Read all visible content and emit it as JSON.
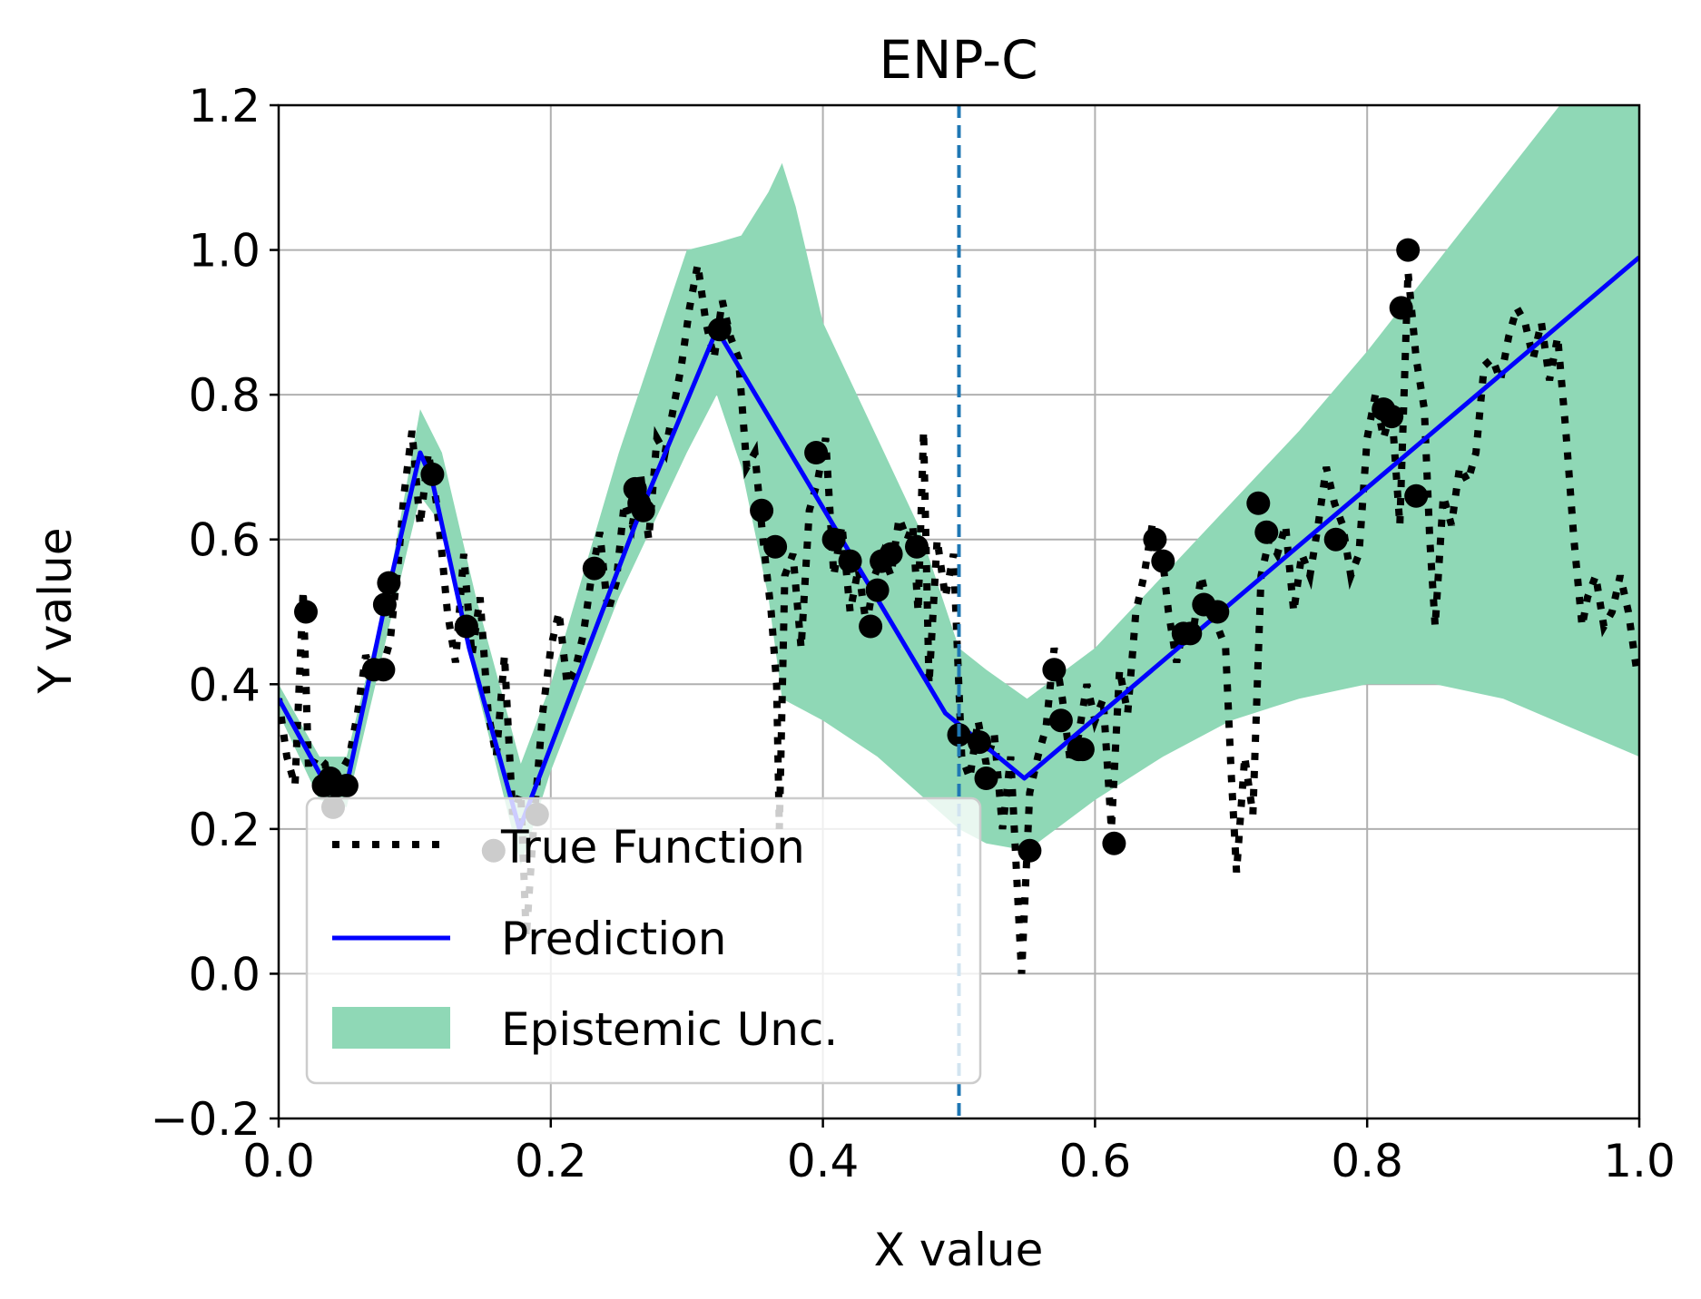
{
  "chart_data": {
    "type": "line",
    "title": "ENP-C",
    "xlabel": "X value",
    "ylabel": "Y value",
    "xlim": [
      0.0,
      1.0
    ],
    "ylim": [
      -0.2,
      1.2
    ],
    "xticks": [
      "0.0",
      "0.2",
      "0.4",
      "0.6",
      "0.8",
      "1.0"
    ],
    "yticks": [
      "−0.2",
      "0.0",
      "0.2",
      "0.4",
      "0.6",
      "0.8",
      "1.0",
      "1.2"
    ],
    "grid": true,
    "legend_position": "lower-left",
    "split_line_x": 0.5,
    "colors": {
      "true_function": "#000000",
      "prediction": "#0000ff",
      "uncertainty": "#8fd8b6",
      "context_points": "#000000",
      "split_line": "#1f77b4",
      "grid": "#b0b0b0"
    },
    "legend": {
      "true_function": "True Function",
      "prediction": "Prediction",
      "uncertainty": "Epistemic Unc."
    },
    "true_function": {
      "x": [
        0.0,
        0.006,
        0.012,
        0.018,
        0.022,
        0.028,
        0.034,
        0.04,
        0.046,
        0.052,
        0.058,
        0.064,
        0.07,
        0.076,
        0.082,
        0.088,
        0.092,
        0.098,
        0.104,
        0.11,
        0.116,
        0.12,
        0.124,
        0.13,
        0.136,
        0.142,
        0.148,
        0.154,
        0.16,
        0.166,
        0.172,
        0.178,
        0.182,
        0.188,
        0.194,
        0.2,
        0.206,
        0.212,
        0.218,
        0.224,
        0.23,
        0.236,
        0.242,
        0.248,
        0.254,
        0.26,
        0.266,
        0.272,
        0.278,
        0.284,
        0.29,
        0.296,
        0.302,
        0.308,
        0.314,
        0.32,
        0.326,
        0.332,
        0.338,
        0.344,
        0.35,
        0.356,
        0.362,
        0.366,
        0.368,
        0.372,
        0.378,
        0.384,
        0.39,
        0.396,
        0.402,
        0.408,
        0.414,
        0.42,
        0.426,
        0.432,
        0.438,
        0.444,
        0.45,
        0.456,
        0.462,
        0.466,
        0.47,
        0.474,
        0.478,
        0.484,
        0.49,
        0.496,
        0.502,
        0.508,
        0.514,
        0.52,
        0.526,
        0.532,
        0.538,
        0.542,
        0.546,
        0.552,
        0.558,
        0.564,
        0.57,
        0.576,
        0.582,
        0.588,
        0.594,
        0.6,
        0.606,
        0.612,
        0.618,
        0.624,
        0.63,
        0.636,
        0.642,
        0.648,
        0.654,
        0.66,
        0.666,
        0.672,
        0.678,
        0.684,
        0.69,
        0.696,
        0.7,
        0.704,
        0.71,
        0.716,
        0.722,
        0.728,
        0.734,
        0.74,
        0.746,
        0.752,
        0.758,
        0.764,
        0.77,
        0.776,
        0.782,
        0.788,
        0.794,
        0.8,
        0.806,
        0.812,
        0.818,
        0.824,
        0.83,
        0.836,
        0.842,
        0.846,
        0.85,
        0.856,
        0.862,
        0.868,
        0.874,
        0.88,
        0.886,
        0.892,
        0.898,
        0.904,
        0.91,
        0.916,
        0.922,
        0.928,
        0.934,
        0.94,
        0.946,
        0.952,
        0.958,
        0.962,
        0.968,
        0.974,
        0.98,
        0.986,
        0.992,
        0.998,
        1.0
      ],
      "y": [
        0.38,
        0.3,
        0.26,
        0.53,
        0.28,
        0.3,
        0.29,
        0.23,
        0.28,
        0.3,
        0.36,
        0.44,
        0.41,
        0.42,
        0.46,
        0.57,
        0.66,
        0.75,
        0.62,
        0.72,
        0.65,
        0.58,
        0.5,
        0.43,
        0.58,
        0.44,
        0.52,
        0.36,
        0.3,
        0.44,
        0.22,
        0.25,
        0.05,
        0.22,
        0.36,
        0.45,
        0.5,
        0.4,
        0.42,
        0.47,
        0.55,
        0.61,
        0.5,
        0.54,
        0.65,
        0.62,
        0.69,
        0.6,
        0.74,
        0.72,
        0.78,
        0.84,
        0.92,
        0.98,
        0.9,
        0.85,
        0.93,
        0.88,
        0.85,
        0.7,
        0.72,
        0.6,
        0.5,
        0.4,
        0.2,
        0.55,
        0.58,
        0.45,
        0.64,
        0.68,
        0.74,
        0.55,
        0.62,
        0.5,
        0.56,
        0.48,
        0.55,
        0.58,
        0.55,
        0.63,
        0.6,
        0.62,
        0.5,
        0.75,
        0.4,
        0.6,
        0.52,
        0.58,
        0.3,
        0.27,
        0.35,
        0.29,
        0.33,
        0.2,
        0.3,
        0.15,
        0.0,
        0.25,
        0.3,
        0.34,
        0.45,
        0.38,
        0.29,
        0.33,
        0.4,
        0.35,
        0.38,
        0.2,
        0.42,
        0.36,
        0.5,
        0.55,
        0.62,
        0.6,
        0.5,
        0.43,
        0.49,
        0.47,
        0.55,
        0.5,
        0.48,
        0.45,
        0.28,
        0.14,
        0.3,
        0.22,
        0.55,
        0.6,
        0.58,
        0.62,
        0.5,
        0.58,
        0.55,
        0.62,
        0.7,
        0.65,
        0.62,
        0.55,
        0.58,
        0.74,
        0.8,
        0.74,
        0.78,
        0.62,
        0.97,
        0.85,
        0.78,
        0.6,
        0.48,
        0.66,
        0.62,
        0.7,
        0.68,
        0.72,
        0.84,
        0.85,
        0.82,
        0.88,
        0.92,
        0.9,
        0.85,
        0.9,
        0.82,
        0.88,
        0.75,
        0.6,
        0.48,
        0.52,
        0.55,
        0.48,
        0.5,
        0.55,
        0.5,
        0.42,
        0.42
      ]
    },
    "prediction": {
      "x": [
        0.0,
        0.035,
        0.05,
        0.077,
        0.104,
        0.113,
        0.14,
        0.177,
        0.262,
        0.322,
        0.49,
        0.548,
        1.0
      ],
      "y": [
        0.38,
        0.26,
        0.26,
        0.5,
        0.72,
        0.68,
        0.45,
        0.2,
        0.62,
        0.89,
        0.36,
        0.27,
        0.99
      ]
    },
    "uncertainty_band": {
      "x": [
        0.0,
        0.03,
        0.05,
        0.08,
        0.104,
        0.12,
        0.145,
        0.178,
        0.2,
        0.25,
        0.3,
        0.322,
        0.34,
        0.36,
        0.37,
        0.38,
        0.4,
        0.44,
        0.47,
        0.5,
        0.52,
        0.55,
        0.6,
        0.65,
        0.7,
        0.75,
        0.8,
        0.85,
        0.9,
        0.95,
        1.0
      ],
      "upper": [
        0.4,
        0.3,
        0.3,
        0.53,
        0.78,
        0.72,
        0.52,
        0.29,
        0.4,
        0.72,
        1.0,
        1.01,
        1.02,
        1.08,
        1.12,
        1.06,
        0.9,
        0.74,
        0.62,
        0.45,
        0.42,
        0.38,
        0.45,
        0.55,
        0.65,
        0.75,
        0.86,
        0.98,
        1.1,
        1.22,
        1.2
      ],
      "lower": [
        0.36,
        0.24,
        0.23,
        0.47,
        0.66,
        0.62,
        0.4,
        0.15,
        0.28,
        0.52,
        0.72,
        0.8,
        0.7,
        0.52,
        0.38,
        0.37,
        0.35,
        0.3,
        0.25,
        0.2,
        0.18,
        0.17,
        0.24,
        0.3,
        0.35,
        0.38,
        0.4,
        0.4,
        0.38,
        0.34,
        0.3
      ]
    },
    "context_points": {
      "x": [
        0.02,
        0.033,
        0.038,
        0.043,
        0.05,
        0.04,
        0.07,
        0.077,
        0.078,
        0.081,
        0.113,
        0.138,
        0.158,
        0.19,
        0.232,
        0.262,
        0.265,
        0.268,
        0.324,
        0.355,
        0.365,
        0.395,
        0.408,
        0.42,
        0.435,
        0.44,
        0.443,
        0.45,
        0.469,
        0.5,
        0.515,
        0.52,
        0.552,
        0.57,
        0.575,
        0.588,
        0.591,
        0.614,
        0.644,
        0.65,
        0.665,
        0.67,
        0.68,
        0.69,
        0.72,
        0.726,
        0.777,
        0.812,
        0.818,
        0.825,
        0.83,
        0.836
      ],
      "y": [
        0.5,
        0.26,
        0.27,
        0.26,
        0.26,
        0.23,
        0.42,
        0.42,
        0.51,
        0.54,
        0.69,
        0.48,
        0.17,
        0.22,
        0.56,
        0.67,
        0.65,
        0.64,
        0.89,
        0.64,
        0.59,
        0.72,
        0.6,
        0.57,
        0.48,
        0.53,
        0.57,
        0.58,
        0.59,
        0.33,
        0.32,
        0.27,
        0.17,
        0.42,
        0.35,
        0.31,
        0.31,
        0.18,
        0.6,
        0.57,
        0.47,
        0.47,
        0.51,
        0.5,
        0.65,
        0.61,
        0.6,
        0.78,
        0.77,
        0.92,
        1.0,
        0.66
      ]
    }
  }
}
